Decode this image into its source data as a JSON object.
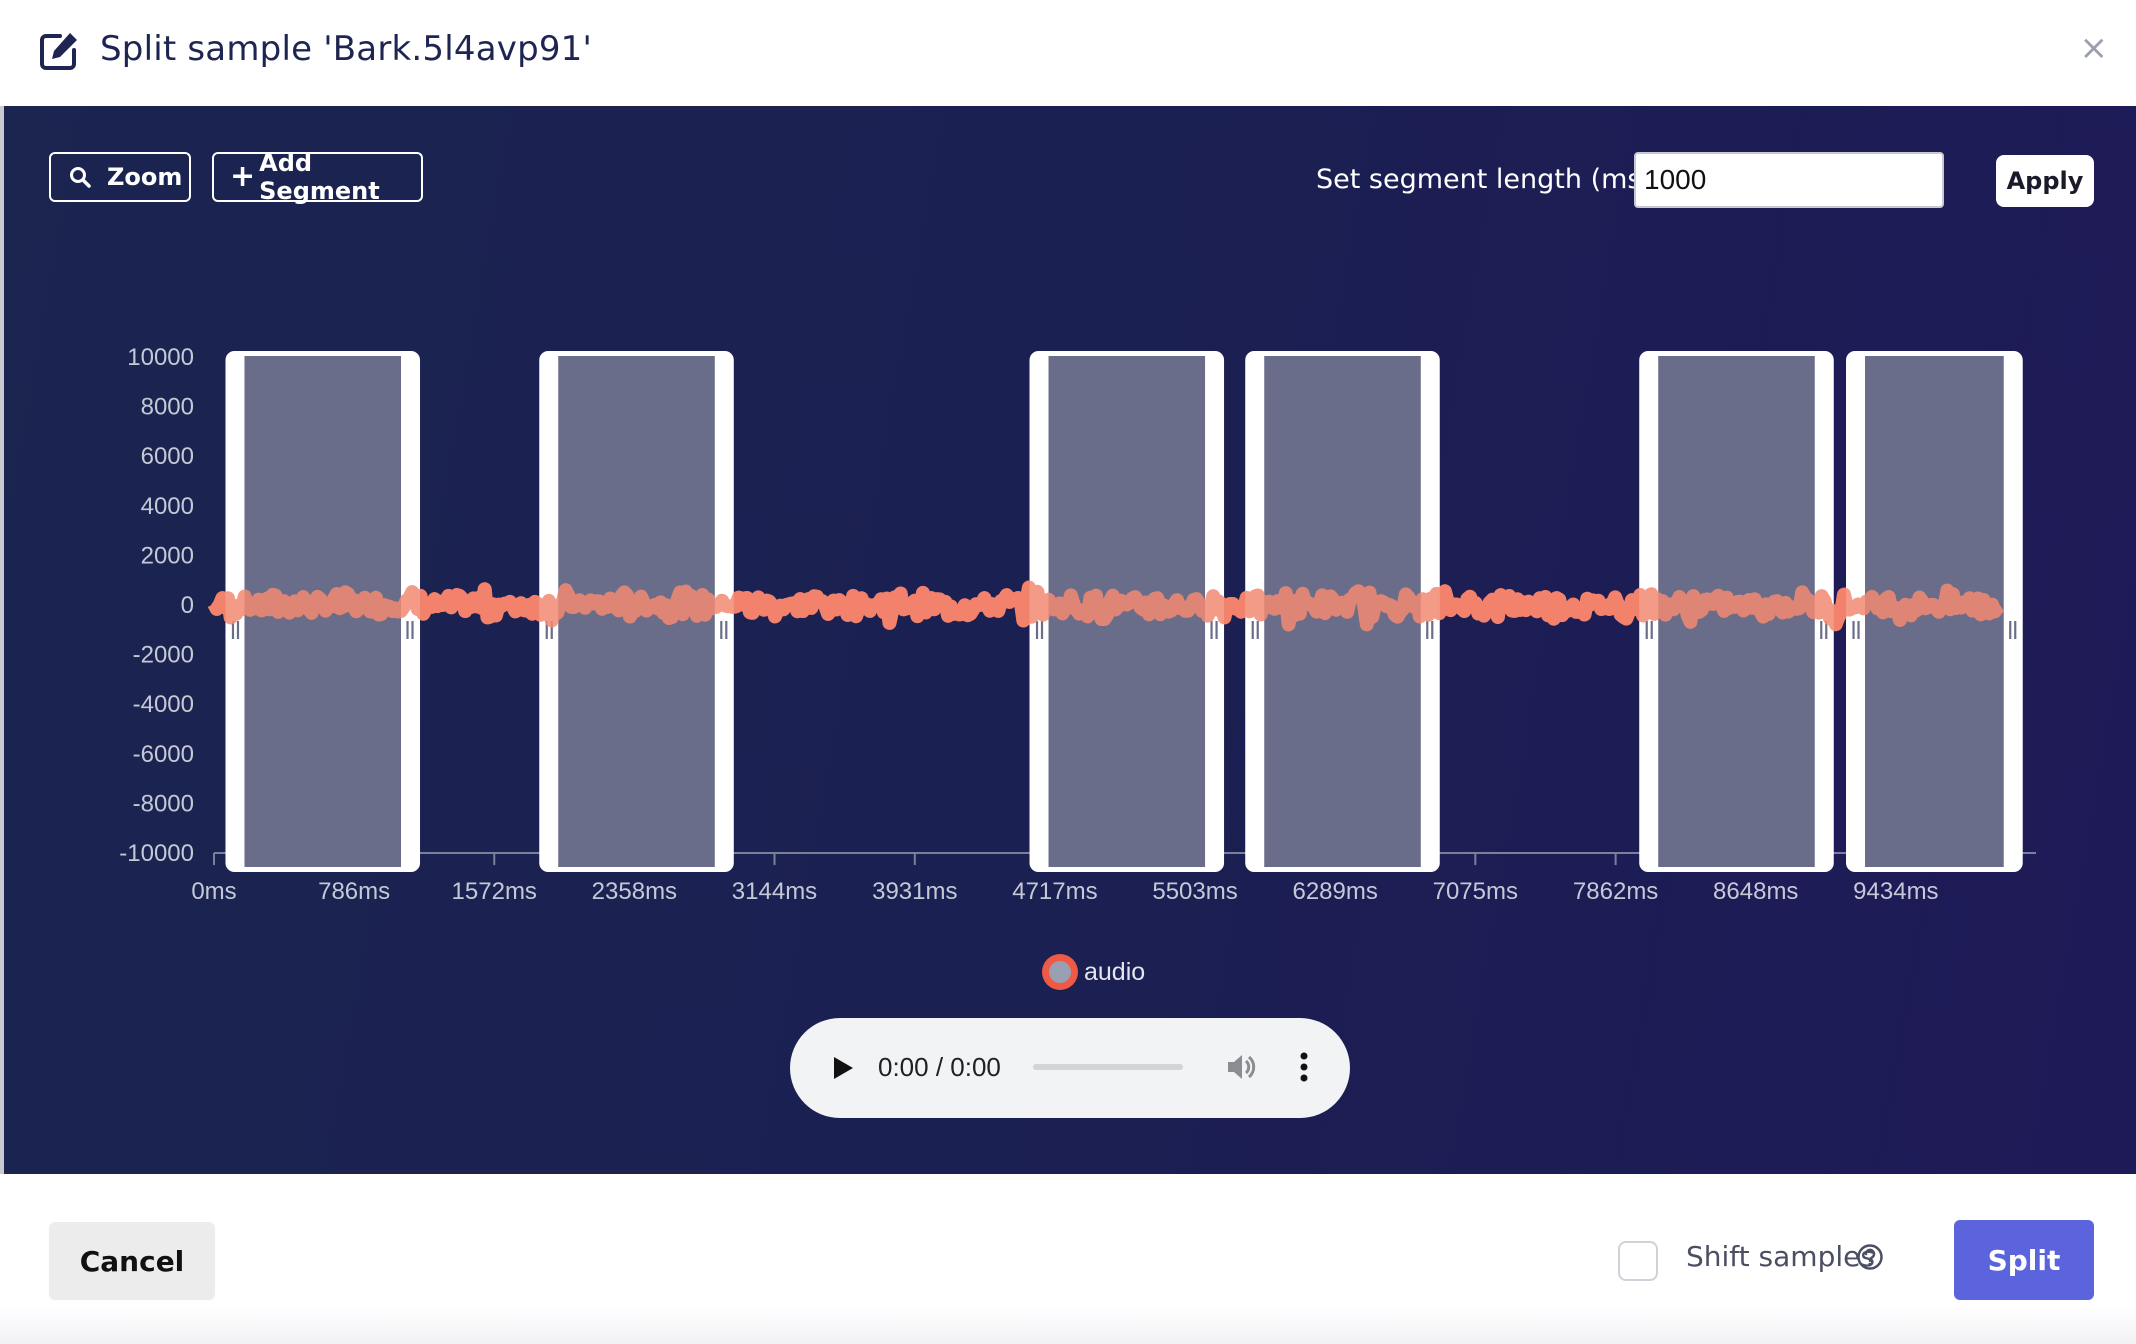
{
  "header": {
    "title": "Split sample 'Bark.5l4avp91'",
    "close_label": "×"
  },
  "toolbar": {
    "zoom_label": "Zoom",
    "add_segment_label": "Add Segment",
    "segment_length_label": "Set segment length (ms.):",
    "segment_length_value": "1000",
    "apply_label": "Apply"
  },
  "chart_data": {
    "type": "line",
    "series": [
      {
        "name": "audio",
        "color": "#ee5a45"
      }
    ],
    "y_ticks": [
      "10000",
      "8000",
      "6000",
      "4000",
      "2000",
      "0",
      "-2000",
      "-4000",
      "-6000",
      "-8000",
      "-10000"
    ],
    "ylim": [
      -10000,
      10000
    ],
    "x_ticks": [
      "0ms",
      "786ms",
      "1572ms",
      "2358ms",
      "3144ms",
      "3931ms",
      "4717ms",
      "5503ms",
      "6289ms",
      "7075ms",
      "7862ms",
      "8648ms",
      "9434ms"
    ],
    "xlim": [
      0,
      10220
    ],
    "segments_ms": [
      [
        70,
        1150
      ],
      [
        1830,
        2910
      ],
      [
        4580,
        5660
      ],
      [
        5790,
        6870
      ],
      [
        8000,
        9080
      ],
      [
        9160,
        10140
      ]
    ],
    "segment_color": "#5f6280"
  },
  "player": {
    "time": "0:00 / 0:00",
    "progress": 0
  },
  "footer": {
    "cancel_label": "Cancel",
    "shift_label": "Shift samples",
    "shift_checked": false,
    "split_label": "Split",
    "split_color": "#5b64dc"
  }
}
